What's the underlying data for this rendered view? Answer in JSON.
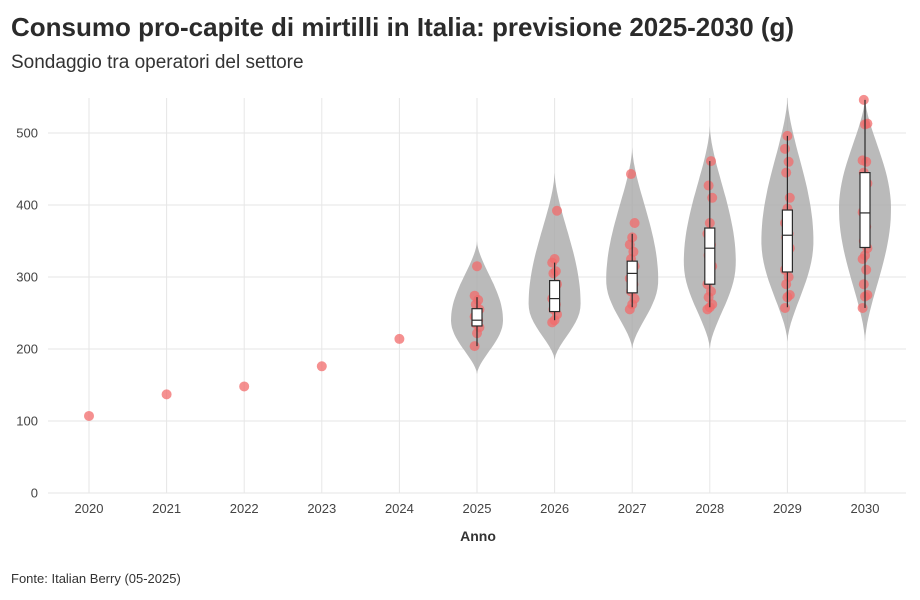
{
  "title": "Consumo pro-capite di mirtilli in Italia: previsione 2025-2030 (g)",
  "subtitle": "Sondaggio tra operatori del settore",
  "source": "Fonte: Italian Berry (05-2025)",
  "colors": {
    "point": "#f26b6b",
    "violin": "#a9a9a9",
    "box_fill": "#ffffff",
    "box_stroke": "#2b2b2b",
    "grid": "#e6e6e6"
  },
  "chart_data": {
    "type": "scatter",
    "subtype": "violin+box+jitter",
    "title": "Consumo pro-capite di mirtilli in Italia: previsione 2025-2030 (g)",
    "subtitle": "Sondaggio tra operatori del settore",
    "xlabel": "Anno",
    "ylabel": "",
    "ylim": [
      0,
      550
    ],
    "yticks": [
      0,
      100,
      200,
      300,
      400,
      500
    ],
    "categories": [
      "2020",
      "2021",
      "2022",
      "2023",
      "2024",
      "2025",
      "2026",
      "2027",
      "2028",
      "2029",
      "2030"
    ],
    "grid": true,
    "historical": [
      {
        "x": "2020",
        "y": 107
      },
      {
        "x": "2021",
        "y": 137
      },
      {
        "x": "2022",
        "y": 148
      },
      {
        "x": "2023",
        "y": 176
      },
      {
        "x": "2024",
        "y": 214
      }
    ],
    "forecasts": [
      {
        "year": "2025",
        "points": [
          204,
          222,
          230,
          235,
          240,
          245,
          250,
          255,
          262,
          268,
          274,
          315
        ],
        "box": {
          "min": 204,
          "q1": 232,
          "median": 240,
          "q3": 256,
          "max": 272
        },
        "violin": {
          "min": 165,
          "max": 350,
          "peak": 240
        }
      },
      {
        "year": "2026",
        "points": [
          237,
          240,
          248,
          255,
          262,
          270,
          278,
          290,
          305,
          308,
          320,
          325,
          392
        ],
        "box": {
          "min": 240,
          "q1": 252,
          "median": 270,
          "q3": 295,
          "max": 320
        },
        "violin": {
          "min": 185,
          "max": 445,
          "peak": 262
        }
      },
      {
        "year": "2027",
        "points": [
          255,
          262,
          270,
          280,
          290,
          298,
          305,
          315,
          325,
          335,
          345,
          355,
          375,
          443
        ],
        "box": {
          "min": 258,
          "q1": 278,
          "median": 305,
          "q3": 322,
          "max": 360
        },
        "violin": {
          "min": 200,
          "max": 480,
          "peak": 295
        }
      },
      {
        "year": "2028",
        "points": [
          255,
          258,
          262,
          272,
          280,
          290,
          300,
          315,
          330,
          345,
          360,
          375,
          410,
          427,
          461
        ],
        "box": {
          "min": 258,
          "q1": 290,
          "median": 340,
          "q3": 368,
          "max": 461
        },
        "violin": {
          "min": 200,
          "max": 510,
          "peak": 320
        }
      },
      {
        "year": "2029",
        "points": [
          257,
          272,
          275,
          290,
          300,
          310,
          325,
          340,
          355,
          360,
          375,
          395,
          410,
          445,
          460,
          478,
          496
        ],
        "box": {
          "min": 258,
          "q1": 307,
          "median": 358,
          "q3": 393,
          "max": 496
        },
        "violin": {
          "min": 210,
          "max": 550,
          "peak": 350
        }
      },
      {
        "year": "2030",
        "points": [
          257,
          273,
          275,
          290,
          310,
          325,
          330,
          340,
          350,
          370,
          390,
          410,
          430,
          445,
          460,
          462,
          512,
          513,
          546
        ],
        "box": {
          "min": 257,
          "q1": 341,
          "median": 389,
          "q3": 445,
          "max": 546
        },
        "violin": {
          "min": 210,
          "max": 550,
          "peak": 395
        }
      }
    ]
  }
}
